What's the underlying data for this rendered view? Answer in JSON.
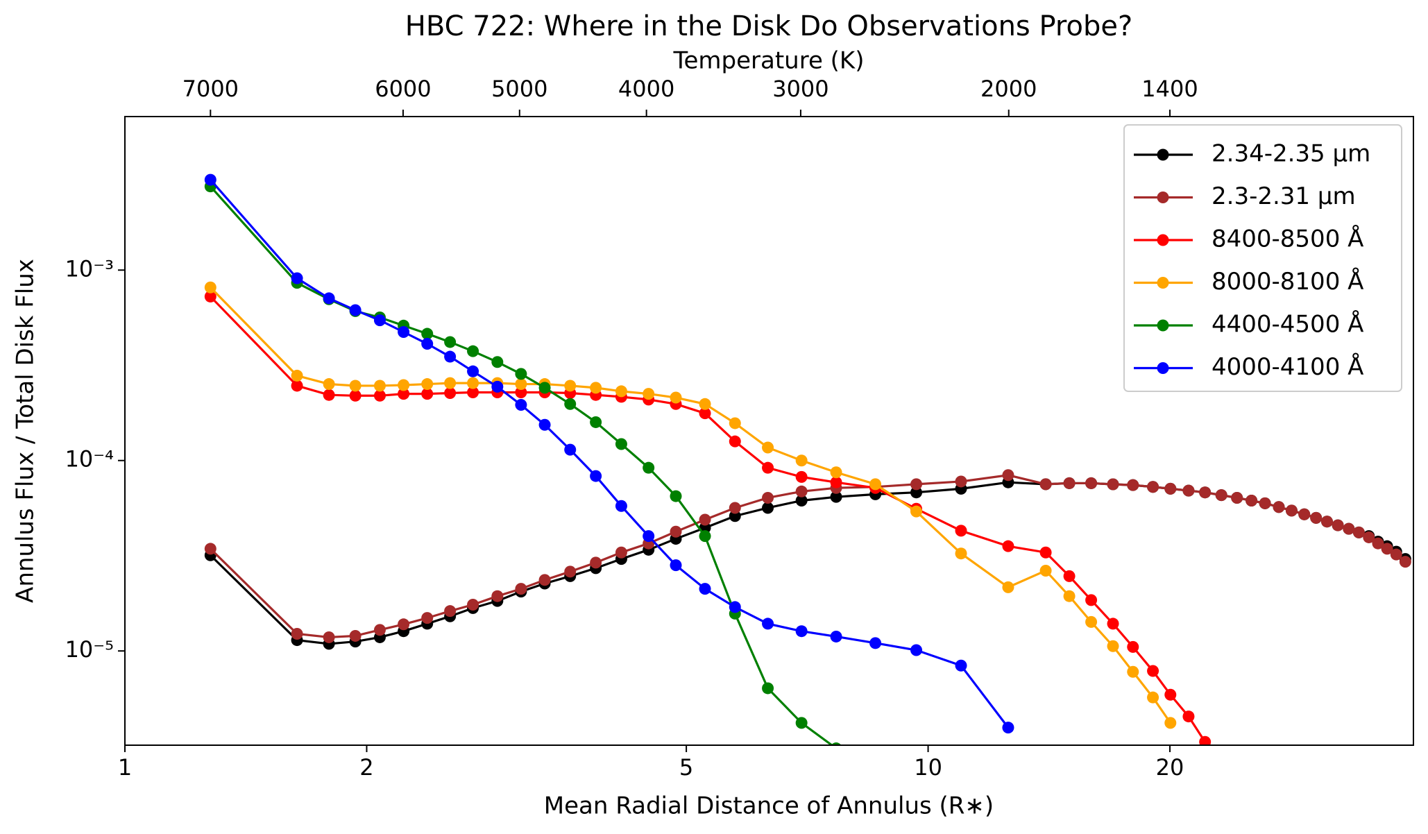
{
  "chart_data": {
    "type": "line",
    "title": "HBC 722: Where in the Disk Do Observations Probe?",
    "xlabel": "Mean Radial Distance of Annulus (R∗)",
    "ylabel": "Annulus Flux / Total Disk Flux",
    "x2label": "Temperature (K)",
    "x2color": "#8b0000",
    "xscale": "log",
    "yscale": "log",
    "xlim": [
      1,
      40.2
    ],
    "ylim": [
      3.2e-06,
      0.0064
    ],
    "xticks": [
      1,
      2,
      5,
      10,
      20
    ],
    "yticks": [
      {
        "value": 1e-05,
        "label": "10⁻⁵"
      },
      {
        "value": 0.0001,
        "label": "10⁻⁴"
      },
      {
        "value": 0.001,
        "label": "10⁻³"
      }
    ],
    "x2ticks": [
      {
        "value": 1.278,
        "label": "7000"
      },
      {
        "value": 2.22,
        "label": "6000"
      },
      {
        "value": 3.1,
        "label": "5000"
      },
      {
        "value": 4.46,
        "label": "4000"
      },
      {
        "value": 6.94,
        "label": "3000"
      },
      {
        "value": 12.6,
        "label": "2000"
      },
      {
        "value": 20.0,
        "label": "1400"
      }
    ],
    "legend": "upper right",
    "x": [
      1.278,
      1.638,
      1.795,
      1.936,
      2.077,
      2.223,
      2.379,
      2.54,
      2.712,
      2.909,
      3.113,
      3.332,
      3.584,
      3.857,
      4.15,
      4.487,
      4.852,
      5.275,
      5.749,
      6.316,
      6.957,
      7.683,
      8.597,
      9.667,
      10.99,
      12.58,
      14.01,
      14.99,
      15.96,
      16.99,
      17.99,
      19.05,
      20.03,
      21.1,
      22.12,
      23.18,
      24.24,
      25.27,
      26.27,
      27.33,
      28.35,
      29.4,
      30.41,
      31.38,
      32.37,
      33.4,
      34.38,
      35.38,
      36.32,
      37.28,
      38.27,
      39.28
    ],
    "series": [
      {
        "name": "2.34-2.35 μm",
        "color": "#000000",
        "values": [
          3.18e-05,
          1.14e-05,
          1.09e-05,
          1.12e-05,
          1.18e-05,
          1.27e-05,
          1.39e-05,
          1.52e-05,
          1.68e-05,
          1.83e-05,
          2.05e-05,
          2.26e-05,
          2.47e-05,
          2.72e-05,
          3.04e-05,
          3.4e-05,
          3.88e-05,
          4.43e-05,
          5.11e-05,
          5.64e-05,
          6.16e-05,
          6.44e-05,
          6.65e-05,
          6.8e-05,
          7.11e-05,
          7.68e-05,
          7.51e-05,
          7.6e-05,
          7.6e-05,
          7.5e-05,
          7.43e-05,
          7.27e-05,
          7.11e-05,
          6.95e-05,
          6.8e-05,
          6.58e-05,
          6.37e-05,
          6.16e-05,
          5.96e-05,
          5.7e-05,
          5.46e-05,
          5.22e-05,
          5e-05,
          4.78e-05,
          4.57e-05,
          4.38e-05,
          4.19e-05,
          4.01e-05,
          3.75e-05,
          3.55e-05,
          3.32e-05,
          3.04e-05
        ]
      },
      {
        "name": "2.3-2.31 μm",
        "color": "#a52a2a",
        "values": [
          3.44e-05,
          1.23e-05,
          1.18e-05,
          1.2e-05,
          1.29e-05,
          1.38e-05,
          1.49e-05,
          1.62e-05,
          1.75e-05,
          1.94e-05,
          2.12e-05,
          2.36e-05,
          2.61e-05,
          2.91e-05,
          3.29e-05,
          3.67e-05,
          4.23e-05,
          4.89e-05,
          5.64e-05,
          6.37e-05,
          6.88e-05,
          7.18e-05,
          7.27e-05,
          7.51e-05,
          7.76e-05,
          8.38e-05,
          7.51e-05,
          7.6e-05,
          7.6e-05,
          7.5e-05,
          7.43e-05,
          7.27e-05,
          7.11e-05,
          6.95e-05,
          6.8e-05,
          6.58e-05,
          6.37e-05,
          6.16e-05,
          5.96e-05,
          5.7e-05,
          5.46e-05,
          5.22e-05,
          5e-05,
          4.78e-05,
          4.57e-05,
          4.38e-05,
          4.19e-05,
          3.95e-05,
          3.67e-05,
          3.44e-05,
          3.21e-05,
          2.94e-05
        ]
      },
      {
        "name": "8400-8500 Å",
        "color": "#ff0000",
        "values": [
          0.000726,
          0.000247,
          0.000221,
          0.000219,
          0.000219,
          0.000224,
          0.000224,
          0.000226,
          0.000228,
          0.000228,
          0.000228,
          0.000228,
          0.000226,
          0.000221,
          0.000216,
          0.000209,
          0.000198,
          0.000177,
          0.000126,
          9.16e-05,
          8.2e-05,
          7.68e-05,
          7.18e-05,
          5.58e-05,
          4.28e-05,
          3.55e-05,
          3.29e-05,
          2.47e-05,
          1.85e-05,
          1.39e-05,
          1.05e-05,
          7.85e-06,
          5.89e-06,
          4.53e-06,
          3.33e-06,
          null,
          null,
          null,
          null,
          null,
          null,
          null,
          null,
          null,
          null,
          null,
          null,
          null,
          null,
          null,
          null,
          null
        ]
      },
      {
        "name": "8000-8100 Å",
        "color": "#ffa500",
        "values": [
          0.000811,
          0.000279,
          0.000252,
          0.000247,
          0.000247,
          0.000249,
          0.000252,
          0.000255,
          0.000255,
          0.000255,
          0.000252,
          0.000252,
          0.000247,
          0.000241,
          0.000231,
          0.000224,
          0.000214,
          0.000198,
          0.000157,
          0.000117,
          0.0001,
          8.67e-05,
          7.51e-05,
          5.4e-05,
          3.25e-05,
          2.16e-05,
          2.64e-05,
          1.94e-05,
          1.42e-05,
          1.06e-05,
          7.77e-06,
          5.7e-06,
          4.19e-06,
          null,
          null,
          null,
          null,
          null,
          null,
          null,
          null,
          null,
          null,
          null,
          null,
          null,
          null,
          null,
          null,
          null,
          null,
          null
        ]
      },
      {
        "name": "4400-4500 Å",
        "color": "#008000",
        "values": [
          0.00275,
          0.000857,
          0.000703,
          0.000609,
          0.000564,
          0.000511,
          0.000463,
          0.000419,
          0.000375,
          0.000329,
          0.000285,
          0.000241,
          0.000198,
          0.000159,
          0.000122,
          9.16e-05,
          6.5e-05,
          4.01e-05,
          1.57e-05,
          6.37e-06,
          4.19e-06,
          3.08e-06,
          null,
          null,
          null,
          null,
          null,
          null,
          null,
          null,
          null,
          null,
          null,
          null,
          null,
          null,
          null,
          null,
          null,
          null,
          null,
          null,
          null,
          null,
          null,
          null,
          null,
          null,
          null,
          null,
          null,
          null
        ]
      },
      {
        "name": "4000-4100 Å",
        "color": "#0000ff",
        "values": [
          0.00298,
          0.000906,
          0.000711,
          0.000616,
          0.000545,
          0.000473,
          0.00041,
          0.000351,
          0.000294,
          0.000244,
          0.000196,
          0.000154,
          0.000114,
          8.29e-05,
          5.77e-05,
          4.01e-05,
          2.82e-05,
          2.12e-05,
          1.7e-05,
          1.39e-05,
          1.27e-05,
          1.19e-05,
          1.1e-05,
          1.01e-05,
          8.38e-06,
          3.96e-06,
          null,
          null,
          null,
          null,
          null,
          null,
          null,
          null,
          null,
          null,
          null,
          null,
          null,
          null,
          null,
          null,
          null,
          null,
          null,
          null,
          null,
          null,
          null,
          null,
          null,
          null
        ]
      }
    ]
  }
}
